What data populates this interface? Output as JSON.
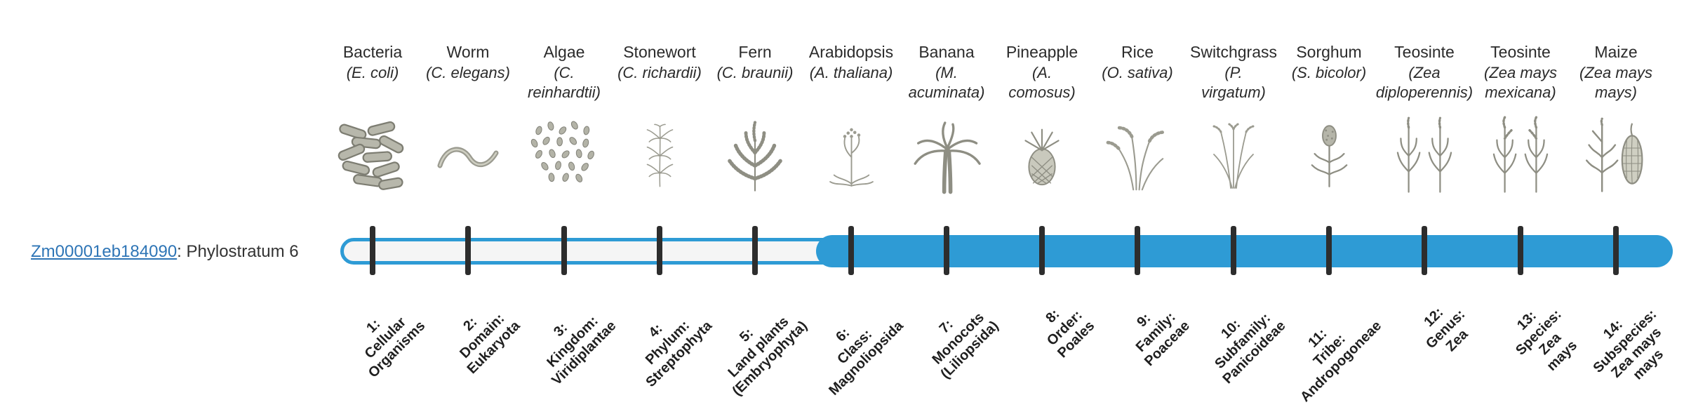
{
  "gene": {
    "id": "Zm00001eb184090",
    "suffix": ": Phylostratum 6",
    "phylostratum": 6,
    "link_color": "#2e75b6"
  },
  "timeline": {
    "total_strata": 14,
    "filled_from_stratum": 6,
    "bar_fill_color": "#2e9bd5",
    "bar_empty_color": "#f5f5f5",
    "tick_color": "#2d2d2d"
  },
  "strata": [
    {
      "index": 1,
      "organism": "Bacteria",
      "scientific": "(E. coli)",
      "icon": "bacteria-illustration",
      "label": "1:\nCellular\nOrganisms"
    },
    {
      "index": 2,
      "organism": "Worm",
      "scientific": "(C. elegans)",
      "icon": "worm-illustration",
      "label": "2:\nDomain:\nEukaryota"
    },
    {
      "index": 3,
      "organism": "Algae",
      "scientific": "(C.\nreinhardtii)",
      "icon": "algae-illustration",
      "label": "3:\nKingdom:\nViridiplantae"
    },
    {
      "index": 4,
      "organism": "Stonewort",
      "scientific": "(C. richardii)",
      "icon": "stonewort-illustration",
      "label": "4:\nPhylum:\nStreptophyta"
    },
    {
      "index": 5,
      "organism": "Fern",
      "scientific": "(C. braunii)",
      "icon": "fern-illustration",
      "label": "5:\nLand plants\n(Embryophyta)"
    },
    {
      "index": 6,
      "organism": "Arabidopsis",
      "scientific": "(A. thaliana)",
      "icon": "arabidopsis-illustration",
      "label": "6:\nClass:\nMagnoliopsida"
    },
    {
      "index": 7,
      "organism": "Banana",
      "scientific": "(M.\nacuminata)",
      "icon": "banana-illustration",
      "label": "7:\nMonocots\n(Liliopsida)"
    },
    {
      "index": 8,
      "organism": "Pineapple",
      "scientific": "(A.\ncomosus)",
      "icon": "pineapple-illustration",
      "label": "8:\nOrder:\nPoales"
    },
    {
      "index": 9,
      "organism": "Rice",
      "scientific": "(O. sativa)",
      "icon": "rice-illustration",
      "label": "9:\nFamily:\nPoaceae"
    },
    {
      "index": 10,
      "organism": "Switchgrass",
      "scientific": "(P.\nvirgatum)",
      "icon": "switchgrass-illustration",
      "label": "10:\nSubfamily:\nPanicoideae"
    },
    {
      "index": 11,
      "organism": "Sorghum",
      "scientific": "(S. bicolor)",
      "icon": "sorghum-illustration",
      "label": "11:\nTribe:\nAndropogoneae"
    },
    {
      "index": 12,
      "organism": "Teosinte",
      "scientific": "(Zea\ndiploperennis)",
      "icon": "teosinte-diploperennis-illustration",
      "label": "12:\nGenus:\nZea"
    },
    {
      "index": 13,
      "organism": "Teosinte",
      "scientific": "(Zea mays\nmexicana)",
      "icon": "teosinte-mexicana-illustration",
      "label": "13:\nSpecies:\nZea\nmays"
    },
    {
      "index": 14,
      "organism": "Maize",
      "scientific": "(Zea mays\nmays)",
      "icon": "maize-illustration",
      "label": "14:\nSubspecies:\nZea mays\nmays"
    }
  ]
}
